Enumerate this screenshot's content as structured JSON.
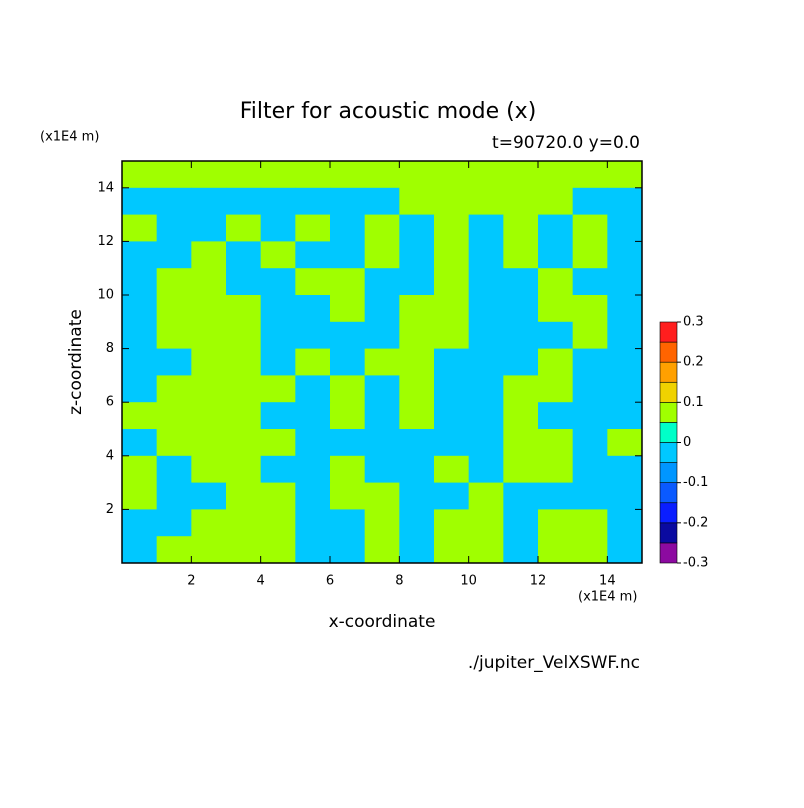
{
  "chart_data": {
    "type": "contour",
    "title": "Filter for acoustic mode (x)",
    "subtitle": "t=90720.0 y=0.0",
    "x_label": "x-coordinate",
    "y_label": "z-coordinate",
    "x_unit": "(x1E4 m)",
    "y_unit": "(x1E4 m)",
    "source": "./jupiter_VelXSWF.nc",
    "xlim": [
      0,
      15
    ],
    "ylim": [
      0,
      15
    ],
    "xticks": [
      2,
      4,
      6,
      8,
      10,
      12,
      14
    ],
    "yticks": [
      2,
      4,
      6,
      8,
      10,
      12,
      14
    ],
    "levels": [
      -0.3,
      -0.25,
      -0.2,
      -0.15,
      -0.1,
      -0.05,
      0,
      0.05,
      0.1,
      0.15,
      0.2,
      0.25,
      0.3
    ],
    "colors": [
      "#8c0aa0",
      "#0a0aa0",
      "#0a1eff",
      "#0a5aff",
      "#0096ff",
      "#00c8ff",
      "#00ffc8",
      "#a0ff00",
      "#f0d200",
      "#ffa000",
      "#ff6400",
      "#ff1e1e",
      "#ffa0a0"
    ],
    "colorbar_ticks": [
      -0.3,
      -0.2,
      -0.1,
      0,
      0.1,
      0.2,
      0.3
    ],
    "z": [
      [
        0.05,
        0.05,
        0.05,
        0.05,
        0.05,
        0.05,
        0.05,
        0.05,
        0.05,
        0.05,
        0.05,
        0.05,
        0.05,
        0.05,
        0.05
      ],
      [
        -0.05,
        -0.05,
        -0.05,
        -0.05,
        -0.05,
        -0.05,
        -0.05,
        -0.05,
        0.05,
        0.05,
        0.05,
        0.05,
        0.05,
        -0.05,
        -0.05
      ],
      [
        0.05,
        -0.05,
        -0.05,
        0.05,
        -0.05,
        0.05,
        -0.05,
        0.05,
        -0.05,
        0.05,
        -0.05,
        0.05,
        -0.05,
        0.05,
        -0.05
      ],
      [
        -0.05,
        -0.05,
        0.05,
        -0.05,
        0.05,
        -0.05,
        -0.05,
        0.05,
        -0.05,
        0.05,
        -0.05,
        0.05,
        -0.05,
        0.05,
        -0.05
      ],
      [
        -0.05,
        0.05,
        0.05,
        -0.05,
        -0.05,
        0.05,
        0.05,
        -0.05,
        -0.05,
        0.05,
        -0.05,
        -0.05,
        0.05,
        -0.05,
        -0.05
      ],
      [
        -0.05,
        0.05,
        0.05,
        0.05,
        -0.05,
        -0.05,
        0.05,
        -0.05,
        0.05,
        0.05,
        -0.05,
        -0.05,
        0.05,
        0.05,
        -0.05
      ],
      [
        -0.05,
        0.05,
        0.05,
        0.05,
        -0.05,
        -0.05,
        -0.05,
        -0.05,
        0.05,
        0.05,
        -0.05,
        -0.05,
        -0.05,
        0.05,
        -0.05
      ],
      [
        -0.05,
        -0.05,
        0.05,
        0.05,
        -0.05,
        0.05,
        -0.05,
        0.05,
        0.05,
        -0.05,
        -0.05,
        -0.05,
        0.05,
        -0.05,
        -0.05
      ],
      [
        -0.05,
        0.05,
        0.05,
        0.05,
        0.05,
        -0.05,
        0.05,
        -0.05,
        0.05,
        -0.05,
        -0.05,
        0.05,
        0.05,
        -0.05,
        -0.05
      ],
      [
        0.05,
        0.05,
        0.05,
        0.05,
        -0.05,
        -0.05,
        0.05,
        -0.05,
        0.05,
        -0.05,
        -0.05,
        0.05,
        -0.05,
        -0.05,
        -0.05
      ],
      [
        -0.05,
        0.05,
        0.05,
        0.05,
        0.05,
        -0.05,
        -0.05,
        -0.05,
        -0.05,
        -0.05,
        -0.05,
        0.05,
        0.05,
        -0.05,
        0.05
      ],
      [
        0.05,
        -0.05,
        0.05,
        0.05,
        -0.05,
        -0.05,
        0.05,
        -0.05,
        -0.05,
        0.05,
        -0.05,
        0.05,
        0.05,
        -0.05,
        -0.05
      ],
      [
        0.05,
        -0.05,
        -0.05,
        0.05,
        0.05,
        -0.05,
        0.05,
        0.05,
        -0.05,
        -0.05,
        0.05,
        -0.05,
        -0.05,
        -0.05,
        -0.05
      ],
      [
        -0.05,
        -0.05,
        0.05,
        0.05,
        0.05,
        -0.05,
        -0.05,
        0.05,
        -0.05,
        0.05,
        0.05,
        -0.05,
        0.05,
        0.05,
        -0.05
      ],
      [
        -0.05,
        0.05,
        0.05,
        0.05,
        0.05,
        -0.05,
        -0.05,
        0.05,
        -0.05,
        0.05,
        0.05,
        -0.05,
        0.05,
        0.05,
        -0.05
      ]
    ]
  }
}
